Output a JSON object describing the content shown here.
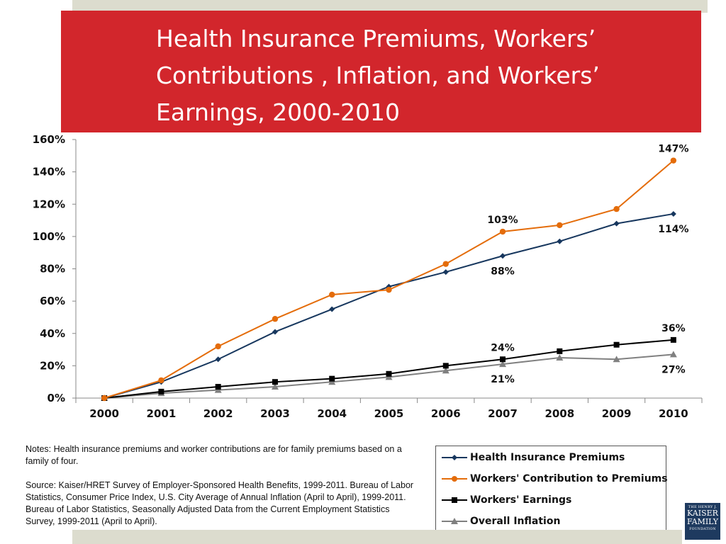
{
  "slide": {
    "title": "Health Insurance Premiums, Workers’ Contributions , Inflation, and Workers’ Earnings, 2000-2010",
    "notes": "Notes: Health insurance premiums and worker contributions are for family premiums based on a family of four.",
    "source": "Source:  Kaiser/HRET Survey of Employer-Sponsored Health Benefits, 1999-2011. Bureau of Labor Statistics, Consumer Price Index, U.S. City Average of Annual Inflation (April to April), 1999-2011. Bureau of Labor Statistics, Seasonally Adjusted Data from the Current Employment Statistics Survey, 1999-2011 (April to April).",
    "logo": {
      "line1": "THE HENRY J.",
      "line2": "KAISER",
      "line3": "FAMILY",
      "line4": "FOUNDATION"
    }
  },
  "chart_data": {
    "type": "line",
    "title": "",
    "xlabel": "",
    "ylabel": "",
    "ylim": [
      0,
      160
    ],
    "yticks": [
      "0%",
      "20%",
      "40%",
      "60%",
      "80%",
      "100%",
      "120%",
      "140%",
      "160%"
    ],
    "ytick_values": [
      0,
      20,
      40,
      60,
      80,
      100,
      120,
      140,
      160
    ],
    "x": [
      "2000",
      "2001",
      "2002",
      "2003",
      "2004",
      "2005",
      "2006",
      "2007",
      "2008",
      "2009",
      "2010"
    ],
    "grid": false,
    "legend_position": "bottom-right",
    "series": [
      {
        "name": "Health Insurance Premiums",
        "color": "#17375e",
        "marker": "diamond",
        "values": [
          0,
          10,
          24,
          41,
          55,
          69,
          78,
          88,
          97,
          108,
          114
        ]
      },
      {
        "name": "Workers' Contribution to Premiums",
        "color": "#e46c0a",
        "marker": "circle",
        "values": [
          0,
          11,
          32,
          49,
          64,
          67,
          83,
          103,
          107,
          117,
          147
        ]
      },
      {
        "name": "Workers' Earnings",
        "color": "#000000",
        "marker": "square",
        "values": [
          0,
          4,
          7,
          10,
          12,
          15,
          20,
          24,
          29,
          33,
          36
        ]
      },
      {
        "name": "Overall Inflation",
        "color": "#808080",
        "marker": "triangle",
        "values": [
          0,
          3,
          5,
          7,
          10,
          13,
          17,
          21,
          25,
          24,
          27
        ]
      }
    ],
    "annotations": [
      {
        "text": "147%",
        "series": 1,
        "index": 10,
        "position": "above"
      },
      {
        "text": "103%",
        "series": 1,
        "index": 7,
        "position": "above"
      },
      {
        "text": "114%",
        "series": 0,
        "index": 10,
        "position": "below"
      },
      {
        "text": "88%",
        "series": 0,
        "index": 7,
        "position": "below"
      },
      {
        "text": "36%",
        "series": 2,
        "index": 10,
        "position": "above"
      },
      {
        "text": "24%",
        "series": 2,
        "index": 7,
        "position": "above"
      },
      {
        "text": "27%",
        "series": 3,
        "index": 10,
        "position": "below"
      },
      {
        "text": "21%",
        "series": 3,
        "index": 7,
        "position": "below"
      }
    ]
  }
}
